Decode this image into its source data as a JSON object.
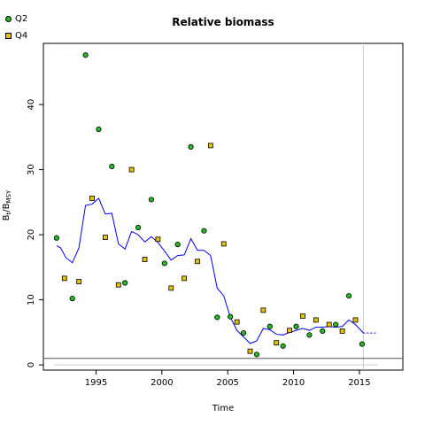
{
  "chart_data": {
    "type": "scatter",
    "title": "Relative biomass",
    "xlabel": "Time",
    "ylabel_main": "B",
    "ylabel_sub1": "t",
    "ylabel_mid": "/B",
    "ylabel_sub2": "MSY",
    "xlim": [
      1991.0,
      2018.3
    ],
    "ylim": [
      -0.8,
      49.4
    ],
    "xticks": [
      1995,
      2000,
      2005,
      2010,
      2015
    ],
    "yticks": [
      0,
      10,
      20,
      30,
      40
    ],
    "grid": false,
    "legend_position": "top-left",
    "reference_line_y": 1,
    "reference_line_y_light": 0,
    "vertical_line_x": 2015.3,
    "series": [
      {
        "name": "Q2",
        "marker": "circle",
        "color": "#22bb22",
        "points": [
          {
            "x": 1992.0,
            "y": 19.5
          },
          {
            "x": 1993.2,
            "y": 10.2
          },
          {
            "x": 1994.2,
            "y": 47.6
          },
          {
            "x": 1995.2,
            "y": 36.2
          },
          {
            "x": 1996.2,
            "y": 30.5
          },
          {
            "x": 1997.2,
            "y": 12.6
          },
          {
            "x": 1998.2,
            "y": 21.1
          },
          {
            "x": 1999.2,
            "y": 25.4
          },
          {
            "x": 2000.2,
            "y": 15.6
          },
          {
            "x": 2001.2,
            "y": 18.5
          },
          {
            "x": 2002.2,
            "y": 33.5
          },
          {
            "x": 2003.2,
            "y": 20.6
          },
          {
            "x": 2004.2,
            "y": 7.3
          },
          {
            "x": 2005.2,
            "y": 7.4
          },
          {
            "x": 2006.2,
            "y": 4.9
          },
          {
            "x": 2007.2,
            "y": 1.6
          },
          {
            "x": 2008.2,
            "y": 5.9
          },
          {
            "x": 2009.2,
            "y": 2.9
          },
          {
            "x": 2010.2,
            "y": 5.9
          },
          {
            "x": 2011.2,
            "y": 4.6
          },
          {
            "x": 2012.2,
            "y": 5.2
          },
          {
            "x": 2013.2,
            "y": 6.2
          },
          {
            "x": 2014.2,
            "y": 10.6
          },
          {
            "x": 2015.2,
            "y": 3.2
          }
        ]
      },
      {
        "name": "Q4",
        "marker": "square",
        "color": "#e6c300",
        "points": [
          {
            "x": 1992.6,
            "y": 13.3
          },
          {
            "x": 1993.7,
            "y": 12.8
          },
          {
            "x": 1994.7,
            "y": 25.6
          },
          {
            "x": 1995.7,
            "y": 19.6
          },
          {
            "x": 1996.7,
            "y": 12.3
          },
          {
            "x": 1997.7,
            "y": 30.0
          },
          {
            "x": 1998.7,
            "y": 16.2
          },
          {
            "x": 1999.7,
            "y": 19.3
          },
          {
            "x": 2000.7,
            "y": 11.8
          },
          {
            "x": 2001.7,
            "y": 13.3
          },
          {
            "x": 2002.7,
            "y": 15.9
          },
          {
            "x": 2003.7,
            "y": 33.7
          },
          {
            "x": 2004.7,
            "y": 18.6
          },
          {
            "x": 2005.7,
            "y": 6.6
          },
          {
            "x": 2006.7,
            "y": 2.1
          },
          {
            "x": 2007.7,
            "y": 8.4
          },
          {
            "x": 2008.7,
            "y": 3.4
          },
          {
            "x": 2009.7,
            "y": 5.3
          },
          {
            "x": 2010.7,
            "y": 7.5
          },
          {
            "x": 2011.7,
            "y": 6.9
          },
          {
            "x": 2012.7,
            "y": 6.2
          },
          {
            "x": 2013.7,
            "y": 5.2
          },
          {
            "x": 2014.7,
            "y": 6.9
          }
        ]
      },
      {
        "name": "",
        "type": "line",
        "color": "#0000ee",
        "points": [
          {
            "x": 1992.0,
            "y": 18.3
          },
          {
            "x": 1992.3,
            "y": 18.0
          },
          {
            "x": 1992.7,
            "y": 16.5
          },
          {
            "x": 1993.2,
            "y": 15.7
          },
          {
            "x": 1993.7,
            "y": 18.0
          },
          {
            "x": 1994.2,
            "y": 24.5
          },
          {
            "x": 1994.7,
            "y": 24.7
          },
          {
            "x": 1995.2,
            "y": 25.6
          },
          {
            "x": 1995.7,
            "y": 23.2
          },
          {
            "x": 1996.2,
            "y": 23.3
          },
          {
            "x": 1996.7,
            "y": 18.6
          },
          {
            "x": 1997.2,
            "y": 17.8
          },
          {
            "x": 1997.7,
            "y": 20.5
          },
          {
            "x": 1998.2,
            "y": 20.0
          },
          {
            "x": 1998.7,
            "y": 18.9
          },
          {
            "x": 1999.2,
            "y": 19.7
          },
          {
            "x": 1999.7,
            "y": 18.8
          },
          {
            "x": 2000.2,
            "y": 17.5
          },
          {
            "x": 2000.7,
            "y": 16.1
          },
          {
            "x": 2001.2,
            "y": 16.8
          },
          {
            "x": 2001.7,
            "y": 16.9
          },
          {
            "x": 2002.2,
            "y": 19.4
          },
          {
            "x": 2002.7,
            "y": 17.6
          },
          {
            "x": 2003.2,
            "y": 17.6
          },
          {
            "x": 2003.7,
            "y": 16.8
          },
          {
            "x": 2004.2,
            "y": 11.8
          },
          {
            "x": 2004.7,
            "y": 10.6
          },
          {
            "x": 2005.2,
            "y": 7.3
          },
          {
            "x": 2005.7,
            "y": 5.3
          },
          {
            "x": 2006.2,
            "y": 4.3
          },
          {
            "x": 2006.7,
            "y": 3.3
          },
          {
            "x": 2007.2,
            "y": 3.7
          },
          {
            "x": 2007.7,
            "y": 5.6
          },
          {
            "x": 2008.2,
            "y": 5.4
          },
          {
            "x": 2008.7,
            "y": 4.7
          },
          {
            "x": 2009.2,
            "y": 4.6
          },
          {
            "x": 2009.7,
            "y": 5.0
          },
          {
            "x": 2010.2,
            "y": 5.3
          },
          {
            "x": 2010.7,
            "y": 5.6
          },
          {
            "x": 2011.2,
            "y": 5.3
          },
          {
            "x": 2011.7,
            "y": 5.8
          },
          {
            "x": 2012.2,
            "y": 5.8
          },
          {
            "x": 2012.7,
            "y": 5.9
          },
          {
            "x": 2013.2,
            "y": 5.8
          },
          {
            "x": 2013.7,
            "y": 5.9
          },
          {
            "x": 2014.2,
            "y": 6.9
          },
          {
            "x": 2014.7,
            "y": 6.2
          },
          {
            "x": 2015.3,
            "y": 4.9
          }
        ],
        "projection": [
          {
            "x": 2015.3,
            "y": 4.9
          },
          {
            "x": 2016.3,
            "y": 4.9
          }
        ]
      }
    ]
  }
}
